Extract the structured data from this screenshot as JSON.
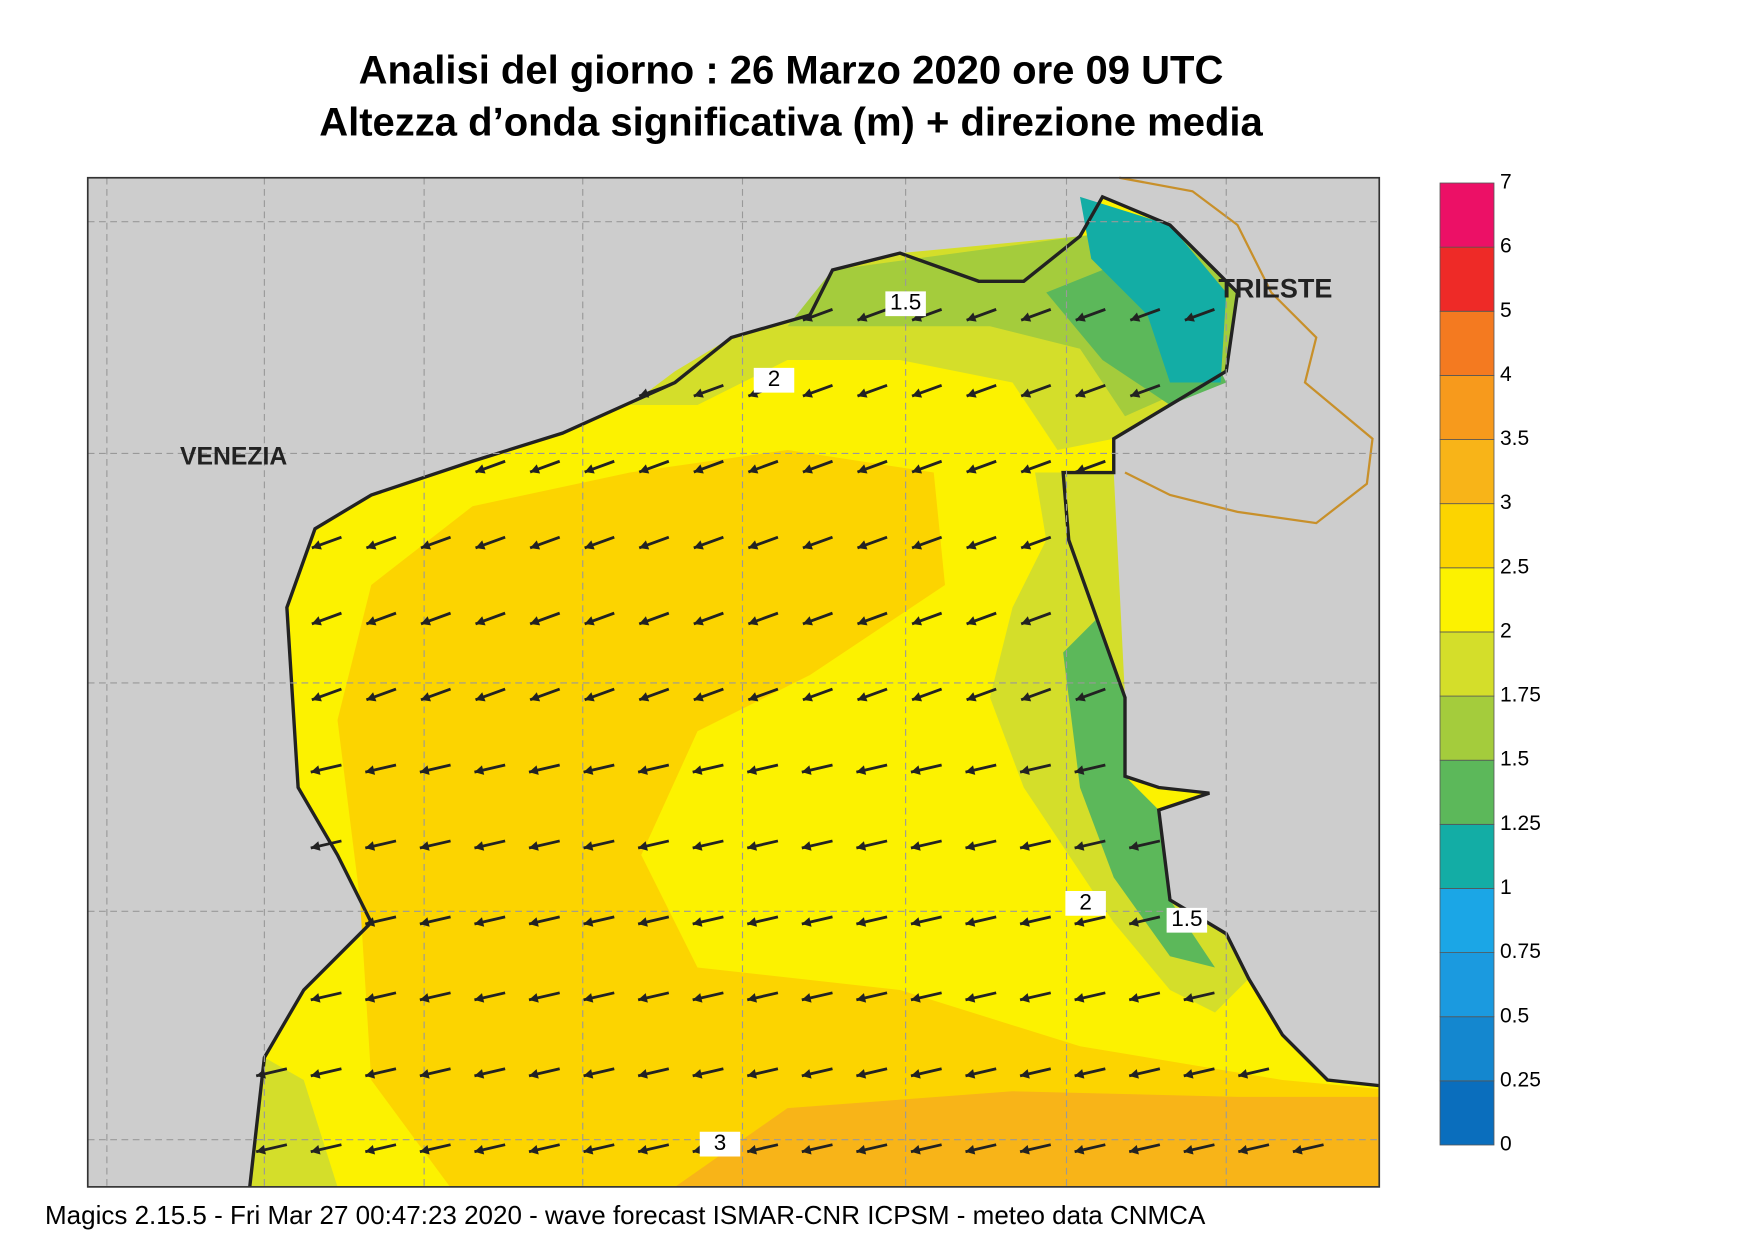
{
  "header": {
    "title_line1": "Analisi del giorno :  26   Marzo   2020   ore 09 UTC",
    "title_line2": "Altezza d’onda significativa (m) + direzione media"
  },
  "map": {
    "places": [
      "VENEZIA",
      "TRIESTE"
    ],
    "contour_labels": [
      "1.5",
      "2",
      "2",
      "1.5",
      "3"
    ]
  },
  "colorbar": {
    "ticks": [
      "0",
      "0.25",
      "0.5",
      "0.75",
      "1",
      "1.25",
      "1.5",
      "1.75",
      "2",
      "2.5",
      "3",
      "3.5",
      "4",
      "5",
      "6",
      "7"
    ],
    "colors": [
      "#0a6ebd",
      "#1487cf",
      "#1b9adf",
      "#1ba6e6",
      "#13ada5",
      "#5cb85a",
      "#a4cc3c",
      "#d4de2a",
      "#fcf200",
      "#fcd400",
      "#f8b418",
      "#f79a1c",
      "#f47a20",
      "#ee2a27",
      "#ec1066"
    ]
  },
  "footer": "Magics 2.15.5 - Fri Mar 27 00:47:23 2020 - wave forecast  ISMAR-CNR  ICPSM - meteo data   CNMCA"
}
